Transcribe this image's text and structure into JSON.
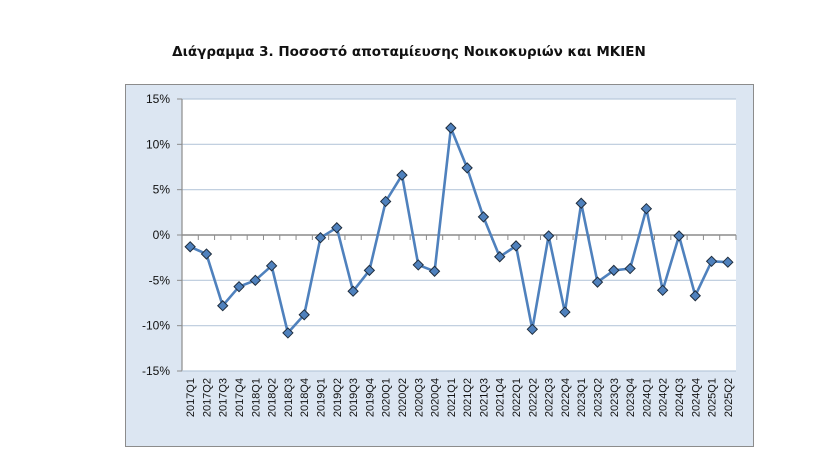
{
  "title": "Διάγραμμα 3. Ποσοστό αποταμίευσης Νοικοκυριών και ΜΚΙΕΝ",
  "colors": {
    "chart_background": "#dce6f2",
    "plot_background": "#ffffff",
    "gridline": "#b9c9dc",
    "zero_axis": "#8c8c8c",
    "line": "#4f81bd",
    "marker_fill": "#4f81bd",
    "marker_stroke": "#1f2d3d"
  },
  "chart_data": {
    "type": "line",
    "title": "Διάγραμμα 3. Ποσοστό αποταμίευσης Νοικοκυριών και ΜΚΙΕΝ",
    "xlabel": "",
    "ylabel": "",
    "ylim": [
      -15,
      15
    ],
    "yticks": [
      15,
      10,
      5,
      0,
      -5,
      -10,
      -15
    ],
    "ytick_labels": [
      "15%",
      "10%",
      "5%",
      "0%",
      "-5%",
      "-10%",
      "-15%"
    ],
    "grid": true,
    "legend": null,
    "marker": "diamond",
    "categories": [
      "2017Q1",
      "2017Q2",
      "2017Q3",
      "2017Q4",
      "2018Q1",
      "2018Q2",
      "2018Q3",
      "2018Q4",
      "2019Q1",
      "2019Q2",
      "2019Q3",
      "2019Q4",
      "2020Q1",
      "2020Q2",
      "2020Q3",
      "2020Q4",
      "2021Q1",
      "2021Q2",
      "2021Q3",
      "2021Q4",
      "2022Q1",
      "2022Q2",
      "2022Q3",
      "2022Q4",
      "2023Q1",
      "2023Q2",
      "2023Q3",
      "2023Q4",
      "2024Q1",
      "2024Q2",
      "2024Q3",
      "2024Q4",
      "2025Q1",
      "2025Q2"
    ],
    "series": [
      {
        "name": "Ποσοστό αποταμίευσης",
        "values": [
          -1.3,
          -2.1,
          -7.8,
          -5.7,
          -5.0,
          -3.4,
          -10.8,
          -8.8,
          -0.3,
          0.8,
          -6.2,
          -3.9,
          3.7,
          6.6,
          -3.3,
          -4.0,
          11.8,
          7.4,
          2.0,
          -2.4,
          -1.2,
          -10.4,
          -0.1,
          -8.5,
          3.5,
          -5.2,
          -3.9,
          -3.7,
          2.9,
          -6.1,
          -0.1,
          -6.7,
          -2.9,
          -3.0
        ]
      }
    ]
  }
}
